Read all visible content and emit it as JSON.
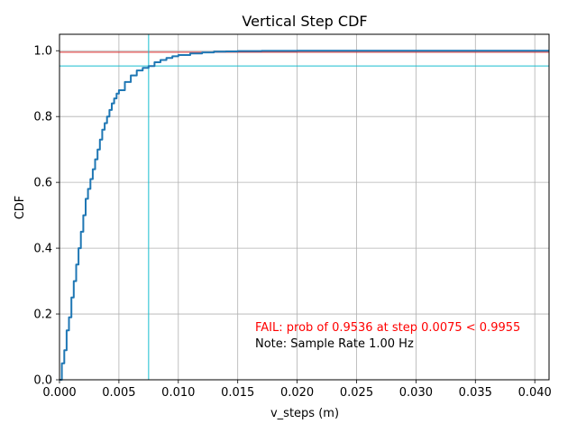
{
  "chart_data": {
    "type": "line",
    "title": "Vertical Step CDF",
    "xlabel": "v_steps (m)",
    "ylabel": "CDF",
    "xlim": [
      0,
      0.0412
    ],
    "ylim": [
      0,
      1.05
    ],
    "x_ticks": [
      0,
      0.005,
      0.01,
      0.015,
      0.02,
      0.025,
      0.03,
      0.035,
      0.04
    ],
    "x_tick_labels": [
      "0.000",
      "0.005",
      "0.010",
      "0.015",
      "0.020",
      "0.025",
      "0.030",
      "0.035",
      "0.040"
    ],
    "y_ticks": [
      0,
      0.2,
      0.4,
      0.6,
      0.8,
      1.0
    ],
    "y_tick_labels": [
      "0.0",
      "0.2",
      "0.4",
      "0.6",
      "0.8",
      "1.0"
    ],
    "grid": true,
    "series": [
      {
        "color": "#1f77b4",
        "x": [
          0,
          0.0002,
          0.0004,
          0.0006,
          0.0008,
          0.001,
          0.0012,
          0.0014,
          0.0016,
          0.0018,
          0.002,
          0.0022,
          0.0024,
          0.0026,
          0.0028,
          0.003,
          0.0032,
          0.0034,
          0.0036,
          0.0038,
          0.004,
          0.0042,
          0.0044,
          0.0046,
          0.0048,
          0.005,
          0.0055,
          0.006,
          0.0065,
          0.007,
          0.0075,
          0.008,
          0.0085,
          0.009,
          0.0095,
          0.01,
          0.011,
          0.012,
          0.013,
          0.014,
          0.015,
          0.017,
          0.02,
          0.025,
          0.03,
          0.035,
          0.0412
        ],
        "y": [
          0.0,
          0.05,
          0.09,
          0.15,
          0.19,
          0.25,
          0.3,
          0.35,
          0.4,
          0.45,
          0.5,
          0.55,
          0.58,
          0.61,
          0.64,
          0.67,
          0.7,
          0.73,
          0.76,
          0.78,
          0.8,
          0.82,
          0.84,
          0.855,
          0.87,
          0.88,
          0.905,
          0.925,
          0.94,
          0.948,
          0.9536,
          0.965,
          0.972,
          0.978,
          0.983,
          0.987,
          0.992,
          0.995,
          0.997,
          0.998,
          0.999,
          0.9995,
          1.0,
          1.0,
          1.0,
          1.0,
          1.0
        ]
      }
    ],
    "reference_lines": [
      {
        "orientation": "horizontal",
        "value": 0.9955,
        "color": "#d62728"
      },
      {
        "orientation": "horizontal",
        "value": 0.9536,
        "color": "#17becf"
      },
      {
        "orientation": "vertical",
        "value": 0.0075,
        "color": "#17becf"
      }
    ],
    "annotations": [
      {
        "text": "FAIL: prob of 0.9536 at step 0.0075 < 0.9955",
        "color": "#ff0000"
      },
      {
        "text": "Note: Sample Rate 1.00 Hz",
        "color": "#000000"
      }
    ]
  }
}
